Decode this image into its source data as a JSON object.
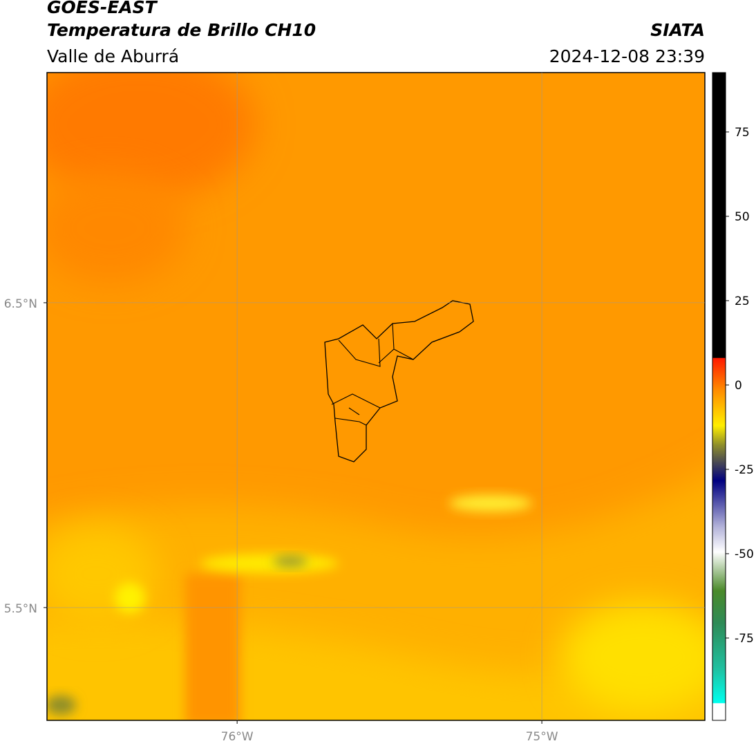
{
  "header": {
    "title": "GOES-EAST",
    "subtitle": "Temperatura de Brillo CH10",
    "region": "Valle de Aburrá",
    "source": "SIATA",
    "datetime": "2024-12-08 23:39"
  },
  "map": {
    "lat_range": [
      5.13,
      7.255
    ],
    "lon_range": [
      -76.624,
      -74.465
    ],
    "lat_labels": [
      {
        "value": 6.5,
        "label": "6.5°N"
      },
      {
        "value": 5.5,
        "label": "5.5°N"
      }
    ],
    "lon_labels": [
      {
        "value": -76,
        "label": "76°W"
      },
      {
        "value": -75,
        "label": "75°W"
      }
    ]
  },
  "colorbar": {
    "range": [
      -99.4,
      92.6
    ],
    "ticks": [
      75,
      50,
      25,
      0,
      -25,
      -50,
      -75
    ]
  }
}
